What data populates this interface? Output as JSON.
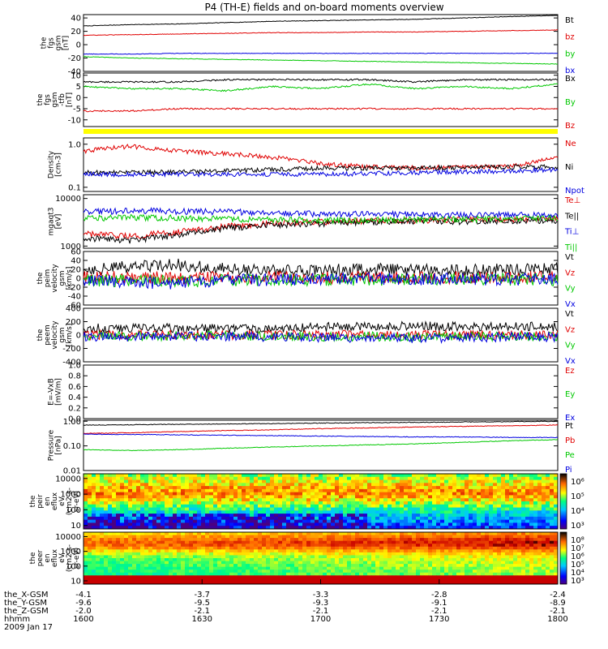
{
  "title": "P4 (TH-E) fields and on-board moments overview",
  "colors": {
    "black": "#000000",
    "red": "#e00000",
    "green": "#00c800",
    "blue": "#0000e0",
    "yellow": "#ffff00"
  },
  "chart_data": [
    {
      "type": "line",
      "id": "fgs_a",
      "ylabel": [
        "the",
        "fgs",
        "gsm",
        "[nT]"
      ],
      "yticks": [
        40,
        20,
        0,
        -20,
        -40
      ],
      "ylim": [
        -40,
        45
      ],
      "series": [
        {
          "name": "Bt",
          "color": "black",
          "values": [
            28,
            30,
            31,
            33,
            35,
            36,
            37,
            38,
            40,
            42,
            44
          ]
        },
        {
          "name": "bz",
          "color": "red",
          "values": [
            14,
            15,
            16,
            17,
            18,
            18,
            19,
            19,
            20,
            21,
            22
          ]
        },
        {
          "name": "by",
          "color": "green",
          "values": [
            -18,
            -20,
            -21,
            -22,
            -23,
            -24,
            -25,
            -26,
            -27,
            -28,
            -29
          ]
        },
        {
          "name": "bx",
          "color": "blue",
          "values": [
            -14,
            -14,
            -13,
            -13,
            -13,
            -13,
            -13,
            -13,
            -13,
            -13,
            -13
          ]
        }
      ]
    },
    {
      "type": "line",
      "id": "fgs_b",
      "ylabel": [
        "the",
        "fgs",
        "gsm",
        "-tfb",
        "[nT]"
      ],
      "yticks": [
        10,
        5,
        0,
        -5,
        -10
      ],
      "ylim": [
        -13,
        11
      ],
      "series": [
        {
          "name": "Bx",
          "color": "black",
          "values": [
            7,
            7,
            7,
            8,
            8,
            8,
            8,
            7,
            8,
            8,
            8
          ]
        },
        {
          "name": "By",
          "color": "green",
          "values": [
            5,
            4,
            4,
            3,
            5,
            4,
            6,
            4,
            5,
            4,
            6
          ]
        },
        {
          "name": "Bz",
          "color": "red",
          "values": [
            -6,
            -6,
            -5,
            -5,
            -5,
            -5,
            -5,
            -5,
            -5,
            -5,
            -5
          ]
        }
      ]
    },
    {
      "type": "line",
      "id": "density",
      "scale": "log",
      "ylabel": [
        "Density",
        "[cm-3]"
      ],
      "yticks": [
        "1.0",
        "0.1"
      ],
      "ylim": [
        0.08,
        1.4
      ],
      "series": [
        {
          "name": "Ne",
          "color": "red",
          "values": [
            0.7,
            0.9,
            0.7,
            0.6,
            0.5,
            0.35,
            0.3,
            0.28,
            0.3,
            0.3,
            0.5
          ]
        },
        {
          "name": "Ni",
          "color": "black",
          "values": [
            0.22,
            0.22,
            0.23,
            0.24,
            0.26,
            0.28,
            0.28,
            0.28,
            0.29,
            0.3,
            0.3
          ]
        },
        {
          "name": "Npot",
          "color": "blue",
          "values": [
            0.2,
            0.2,
            0.2,
            0.2,
            0.2,
            0.2,
            0.21,
            0.22,
            0.23,
            0.24,
            0.26
          ]
        }
      ]
    },
    {
      "type": "line",
      "id": "temperature",
      "scale": "log",
      "ylabel": [
        "mgaqt3",
        "[eV]"
      ],
      "yticks": [
        "10000",
        "1000"
      ],
      "ylim": [
        900,
        12000
      ],
      "series": [
        {
          "name": "Te⊥",
          "color": "red",
          "values": [
            1800,
            1600,
            2000,
            2600,
            3000,
            3200,
            3400,
            3500,
            3600,
            3700,
            3800
          ]
        },
        {
          "name": "Te||",
          "color": "black",
          "values": [
            1500,
            1300,
            1700,
            2400,
            2800,
            3000,
            3200,
            3300,
            3300,
            3400,
            3500
          ]
        },
        {
          "name": "Ti⊥",
          "color": "blue",
          "values": [
            5200,
            5600,
            5400,
            5300,
            5000,
            4800,
            4700,
            4600,
            4500,
            4500,
            4400
          ]
        },
        {
          "name": "Ti||",
          "color": "green",
          "values": [
            3800,
            4000,
            3900,
            3700,
            3600,
            3500,
            3500,
            3600,
            3700,
            3800,
            3900
          ]
        }
      ]
    },
    {
      "type": "line",
      "id": "peim_velocity",
      "ylabel": [
        "the",
        "peim",
        "velocity",
        "gsm",
        "[km/s]"
      ],
      "yticks": [
        60,
        40,
        20,
        0,
        -20,
        -40,
        -60
      ],
      "ylim": [
        -60,
        60
      ],
      "series": [
        {
          "name": "Vt",
          "color": "black",
          "values": [
            20,
            25,
            30,
            20,
            18,
            18,
            20,
            18,
            18,
            20,
            20
          ]
        },
        {
          "name": "Vz",
          "color": "red",
          "values": [
            2,
            3,
            0,
            2,
            2,
            1,
            2,
            1,
            2,
            2,
            2
          ]
        },
        {
          "name": "Vy",
          "color": "green",
          "values": [
            -4,
            -6,
            -8,
            -4,
            -3,
            -3,
            -3,
            -3,
            -2,
            -3,
            -3
          ]
        },
        {
          "name": "Vx",
          "color": "blue",
          "values": [
            -3,
            -8,
            -12,
            -4,
            -3,
            -2,
            -2,
            -2,
            -2,
            -2,
            -2
          ]
        }
      ]
    },
    {
      "type": "line",
      "id": "peem_velocity",
      "ylabel": [
        "the",
        "peem",
        "velocity",
        "gsm",
        "[km/s]"
      ],
      "yticks": [
        400,
        200,
        0,
        -200,
        -400
      ],
      "ylim": [
        -400,
        400
      ],
      "series": [
        {
          "name": "Vt",
          "color": "black",
          "values": [
            100,
            110,
            100,
            100,
            110,
            120,
            130,
            140,
            130,
            130,
            120
          ]
        },
        {
          "name": "Vz",
          "color": "red",
          "values": [
            0,
            5,
            0,
            0,
            5,
            5,
            0,
            5,
            0,
            0,
            0
          ]
        },
        {
          "name": "Vy",
          "color": "green",
          "values": [
            -10,
            -20,
            -10,
            -10,
            -20,
            -30,
            -20,
            -30,
            -20,
            -20,
            -20
          ]
        },
        {
          "name": "Vx",
          "color": "blue",
          "values": [
            -20,
            -30,
            -20,
            -20,
            -30,
            -40,
            -40,
            -50,
            -40,
            -30,
            -30
          ]
        }
      ]
    },
    {
      "type": "line",
      "id": "efield",
      "ylabel": [
        "E=-VxB",
        "[mV/m]"
      ],
      "yticks": [
        "1.0",
        "0.8",
        "0.6",
        "0.4",
        "0.2",
        "0.0"
      ],
      "ylim": [
        0,
        1
      ],
      "series": [
        {
          "name": "Ez",
          "color": "red",
          "values": []
        },
        {
          "name": "Ey",
          "color": "green",
          "values": []
        },
        {
          "name": "Ex",
          "color": "blue",
          "values": []
        }
      ]
    },
    {
      "type": "line",
      "id": "pressure",
      "scale": "log",
      "ylabel": [
        "Pressure",
        "[nPa]"
      ],
      "yticks": [
        "1.00",
        "0.10",
        "0.01"
      ],
      "ylim": [
        0.01,
        1.1
      ],
      "series": [
        {
          "name": "Pt",
          "color": "black",
          "values": [
            0.7,
            0.72,
            0.75,
            0.78,
            0.8,
            0.84,
            0.88,
            0.9,
            0.93,
            0.96,
            1.0
          ]
        },
        {
          "name": "Pb",
          "color": "red",
          "values": [
            0.32,
            0.34,
            0.38,
            0.42,
            0.45,
            0.5,
            0.54,
            0.58,
            0.62,
            0.66,
            0.7
          ]
        },
        {
          "name": "Pe",
          "color": "green",
          "values": [
            0.07,
            0.065,
            0.07,
            0.08,
            0.09,
            0.1,
            0.11,
            0.12,
            0.14,
            0.16,
            0.18
          ]
        },
        {
          "name": "Pi",
          "color": "blue",
          "values": [
            0.3,
            0.29,
            0.28,
            0.27,
            0.26,
            0.25,
            0.24,
            0.23,
            0.23,
            0.22,
            0.22
          ]
        }
      ]
    },
    {
      "type": "heatmap",
      "id": "peir_spectrogram",
      "scale": "log",
      "ylabel": [
        "the",
        "peir",
        "en",
        "eflux",
        "eV",
        "(cm2-s-",
        "sr-eV)"
      ],
      "yticks": [
        "10000",
        "1000",
        "100",
        "10"
      ],
      "colorbar": [
        "10⁶",
        "10⁵",
        "10⁴",
        "10³"
      ]
    },
    {
      "type": "heatmap",
      "id": "peer_spectrogram",
      "scale": "log",
      "ylabel": [
        "the",
        "peer",
        "en",
        "eflux",
        "eV",
        "(cm2-s-",
        "sr-eV)"
      ],
      "yticks": [
        "10000",
        "1000",
        "100",
        "10"
      ],
      "colorbar": [
        "10⁸",
        "10⁷",
        "10⁶",
        "10⁵",
        "10⁴",
        "10³"
      ]
    }
  ],
  "x_axis": {
    "row_labels": [
      "the_X-GSM",
      "the_Y-GSM",
      "the_Z-GSM",
      "hhmm"
    ],
    "columns": [
      {
        "x": "-4.1",
        "y": "-9.6",
        "z": "-2.0",
        "t": "1600"
      },
      {
        "x": "-3.7",
        "y": "-9.5",
        "z": "-2.1",
        "t": "1630"
      },
      {
        "x": "-3.3",
        "y": "-9.3",
        "z": "-2.1",
        "t": "1700"
      },
      {
        "x": "-2.8",
        "y": "-9.1",
        "z": "-2.1",
        "t": "1730"
      },
      {
        "x": "-2.4",
        "y": "-8.9",
        "z": "-2.1",
        "t": "1800"
      }
    ],
    "date": "2009 Jan 17"
  }
}
